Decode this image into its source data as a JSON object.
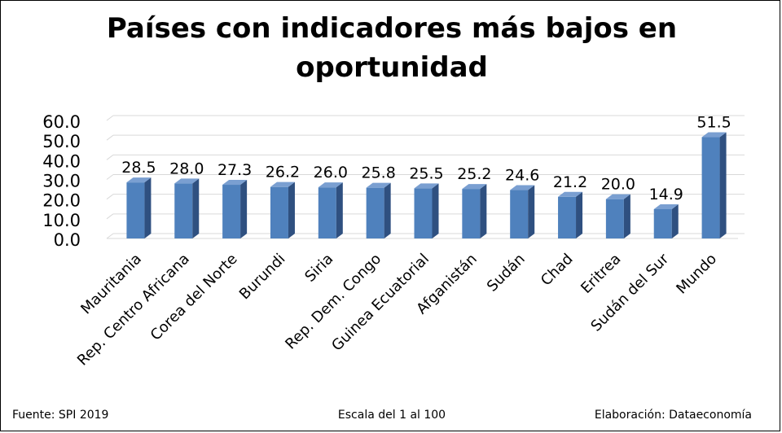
{
  "chart_data": {
    "type": "bar",
    "title": "Países con indicadores más bajos en oportunidad",
    "categories": [
      "Mauritania",
      "Rep. Centro Africana",
      "Corea del Norte",
      "Burundi",
      "Siria",
      "Rep. Dem. Congo",
      "Guinea Ecuatorial",
      "Afganistán",
      "Sudán",
      "Chad",
      "Eritrea",
      "Sudán del Sur",
      "Mundo"
    ],
    "values": [
      28.5,
      28.0,
      27.3,
      26.2,
      26.0,
      25.8,
      25.5,
      25.2,
      24.6,
      21.2,
      20.0,
      14.9,
      51.5
    ],
    "value_labels": [
      "28.5",
      "28.0",
      "27.3",
      "26.2",
      "26.0",
      "25.8",
      "25.5",
      "25.2",
      "24.6",
      "21.2",
      "20.0",
      "14.9",
      "51.5"
    ],
    "ylim": [
      0,
      60
    ],
    "yticks": [
      0,
      10,
      20,
      30,
      40,
      50,
      60
    ],
    "ytick_labels": [
      "0.0",
      "10.0",
      "20.0",
      "30.0",
      "40.0",
      "50.0",
      "60.0"
    ],
    "xlabel": "",
    "ylabel": "",
    "grid": true,
    "bar_color": "#4f81bd",
    "bar_side_color": "#2f5080",
    "bar_top_color": "#7a9fd1"
  },
  "footer": {
    "source": "Fuente: SPI 2019",
    "scale": "Escala del 1 al 100",
    "credit": "Elaboración: Dataeconomía"
  }
}
